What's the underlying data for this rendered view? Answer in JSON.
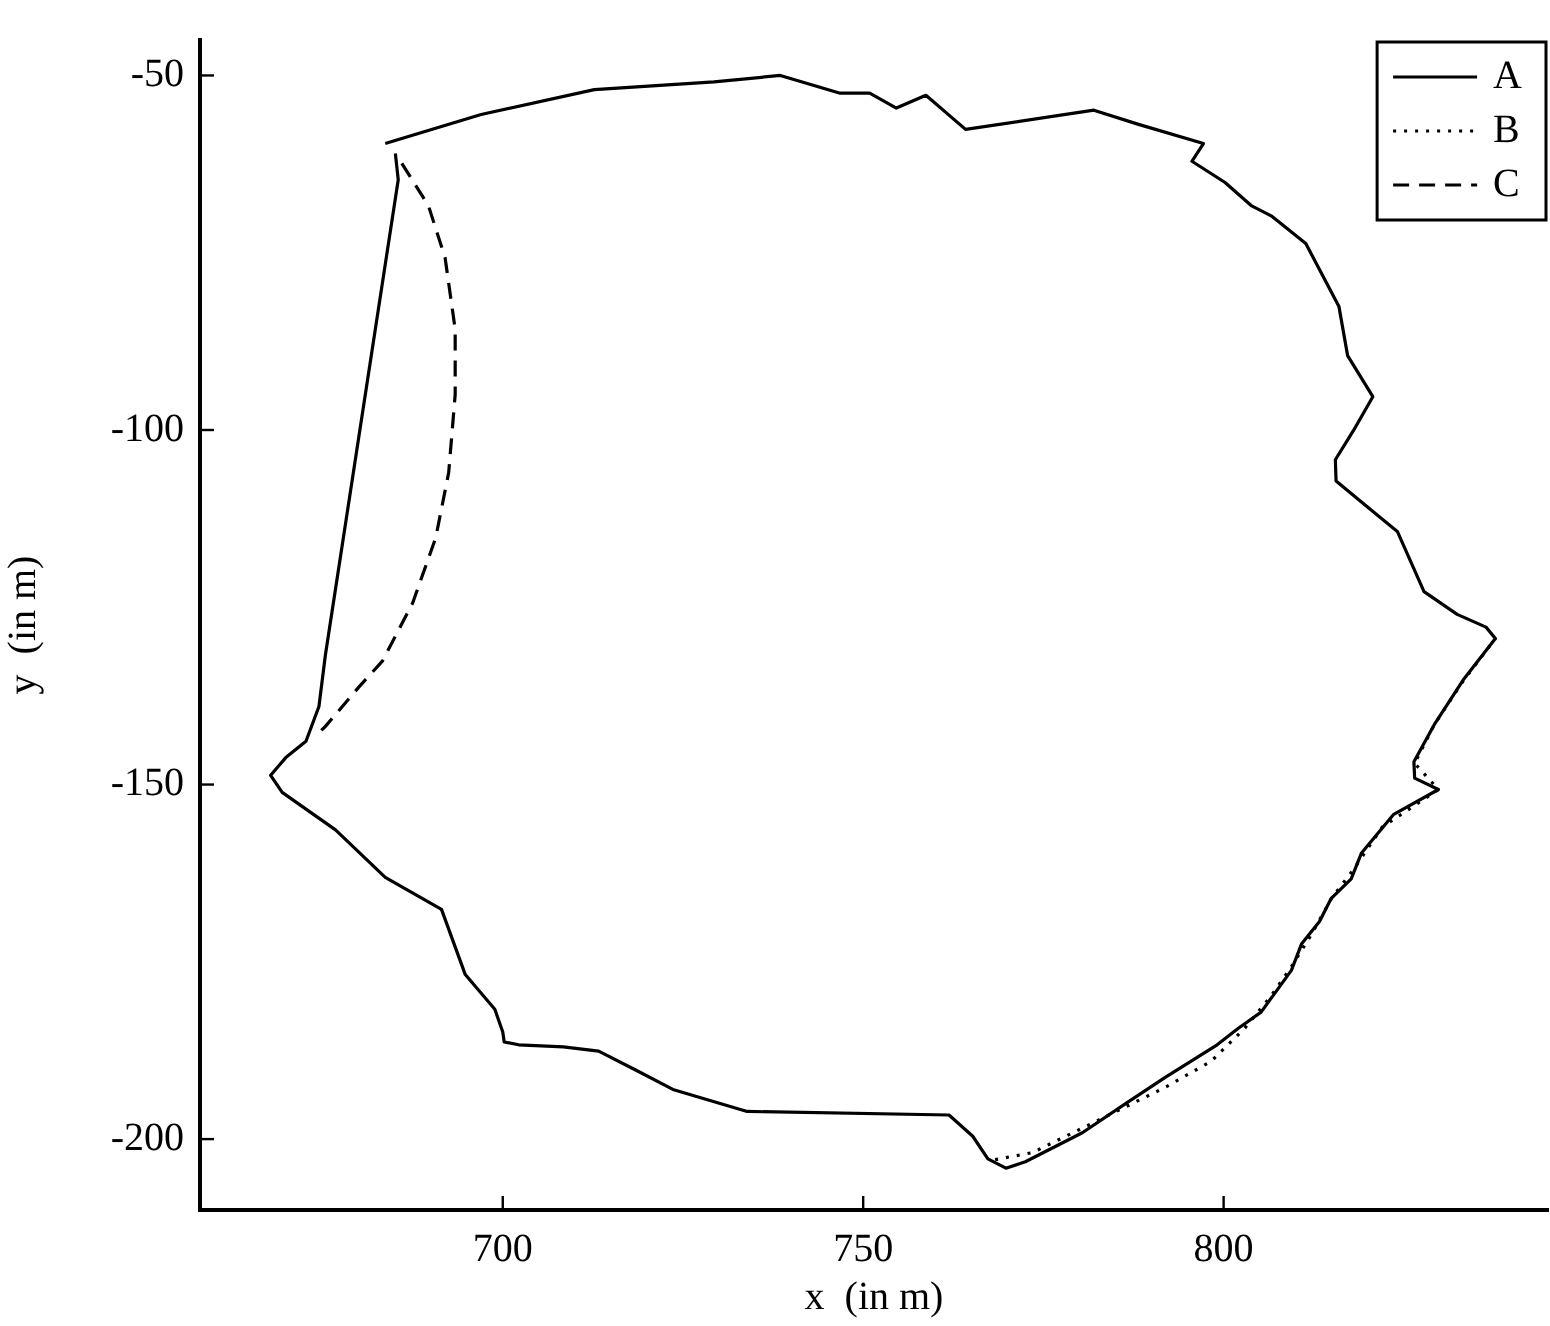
{
  "chart_data": {
    "type": "line",
    "xlabel": "x  (in m)",
    "ylabel": "y  (in m)",
    "xlim": [
      658,
      845
    ],
    "ylim": [
      -210,
      -45
    ],
    "xticks": [
      700,
      750,
      800
    ],
    "yticks": [
      -200,
      -150,
      -100,
      -50
    ],
    "grid": false,
    "legend": "top right",
    "series": [
      {
        "name": "A",
        "color": "#000000",
        "line_style": "solid",
        "x": [
          683.7,
          697,
          712.7,
          729.3,
          738.5,
          746.8,
          750.9,
          754.6,
          758.7,
          764.2,
          782,
          788.2,
          797.2,
          795.6,
          800.2,
          803.9,
          806.6,
          811.4,
          816,
          817.2,
          820.7,
          818,
          815.5,
          815.6,
          820,
          824.1,
          827.8,
          832.4,
          836.4,
          837.7,
          833.2,
          829.2,
          826.4,
          826.5,
          829.8,
          823.6,
          819.1,
          817.7,
          814.9,
          813.3,
          810.8,
          809.4,
          805.2,
          802,
          799.1,
          791.9,
          786.4,
          780.4,
          772.5,
          769.8,
          767.3,
          765.2,
          761.9,
          733.9,
          723.6,
          718.7,
          713.3,
          708.4,
          702.2,
          700.2,
          700,
          698.9,
          694.8,
          691.5,
          683.7,
          676.8,
          669.4,
          667.8,
          669.9,
          672.7,
          674.5,
          675.4,
          685.5,
          685.1
        ],
        "values": [
          -59.6,
          -55.5,
          -52,
          -50.9,
          -50,
          -52.5,
          -52.5,
          -54.6,
          -52.8,
          -57.6,
          -54.9,
          -56.9,
          -59.6,
          -62.1,
          -65.1,
          -68.4,
          -69.8,
          -73.7,
          -82.6,
          -89.5,
          -95.3,
          -100.1,
          -104.2,
          -107.2,
          -110.9,
          -114.3,
          -122.8,
          -126,
          -127.8,
          -129.4,
          -135.3,
          -141.6,
          -146.8,
          -149.1,
          -150.7,
          -154.2,
          -159.7,
          -163.3,
          -166.1,
          -169.3,
          -172.5,
          -176.2,
          -182.1,
          -184.4,
          -186.7,
          -191.3,
          -195,
          -199.1,
          -203.2,
          -204.1,
          -202.8,
          -199.6,
          -196.6,
          -196.1,
          -193,
          -190.4,
          -187.6,
          -187,
          -186.7,
          -186.3,
          -184.9,
          -181.7,
          -176.8,
          -167.6,
          -163.1,
          -156.4,
          -151.1,
          -148.7,
          -146.2,
          -143.9,
          -139,
          -131.7,
          -64.7,
          -61
        ]
      },
      {
        "name": "B",
        "color": "#000000",
        "line_style": "dotted",
        "x": [
          768.3,
          773.5,
          782.7,
          791.9,
          798.3,
          802.9,
          806.6,
          809.4,
          812.2,
          815,
          818,
          822,
          829.8,
          826.5,
          829.2,
          833.3,
          837.7
        ],
        "values": [
          -202.9,
          -201.9,
          -197.3,
          -192.7,
          -189,
          -184.4,
          -179.8,
          -175.7,
          -171.1,
          -166,
          -162,
          -156,
          -150.7,
          -147,
          -141.6,
          -135.3,
          -129.4
        ]
      },
      {
        "name": "C",
        "color": "#000000",
        "line_style": "dashed",
        "x": [
          686,
          689.7,
          692,
          693.4,
          693.4,
          692.5,
          690.7,
          687.5,
          683.3,
          680,
          675.4,
          674.1
        ],
        "values": [
          -62.4,
          -68.4,
          -75.7,
          -85.8,
          -95,
          -106,
          -115.2,
          -124.4,
          -132.6,
          -136.3,
          -141.8,
          -143.1
        ]
      }
    ]
  }
}
